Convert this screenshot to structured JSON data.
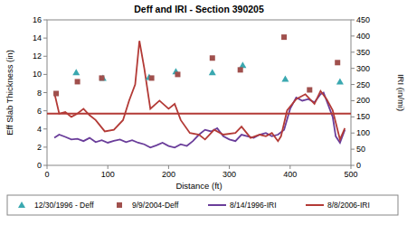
{
  "chart_data": {
    "type": "line",
    "title": "Deff and IRI - Section 390205",
    "x_label": "Distance (ft)",
    "y_label": "Eff Slab Thickness (in)",
    "y2_label": "IRI (in/mi)",
    "xlim": [
      0,
      500
    ],
    "xticks": [
      0,
      100,
      200,
      300,
      400,
      500
    ],
    "ylim": [
      0,
      16
    ],
    "yticks": [
      0,
      2,
      4,
      6,
      8,
      10,
      12,
      14,
      16
    ],
    "y2lim": [
      0,
      450
    ],
    "y2ticks": [
      0,
      50,
      100,
      150,
      200,
      250,
      300,
      350,
      400,
      450
    ],
    "grid": false,
    "legend": "bottom",
    "series": [
      {
        "name": "12/30/1996 - Deff",
        "type": "scatter",
        "marker": "triangle",
        "color": "#3aa8b0",
        "x": [
          48,
          92,
          168,
          212,
          272,
          322,
          392,
          482
        ],
        "values": [
          10.2,
          9.6,
          9.7,
          10.3,
          10.2,
          11.0,
          9.5,
          9.2
        ]
      },
      {
        "name": "9/9/2004-Deff",
        "type": "scatter",
        "marker": "square",
        "color": "#a0504d",
        "x": [
          15,
          50,
          90,
          172,
          215,
          272,
          318,
          390,
          432,
          478
        ],
        "values": [
          7.9,
          9.2,
          9.6,
          9.6,
          10.0,
          11.8,
          10.5,
          14.1,
          8.3,
          11.3
        ]
      },
      {
        "name": "8/14/1996-IRI",
        "type": "line",
        "line_style": "solid",
        "color": "#6a3d9a",
        "axis": "y2",
        "x": [
          12,
          20,
          30,
          40,
          50,
          60,
          70,
          80,
          90,
          100,
          110,
          120,
          130,
          140,
          150,
          160,
          170,
          180,
          190,
          200,
          210,
          220,
          230,
          240,
          250,
          260,
          270,
          280,
          290,
          300,
          310,
          320,
          330,
          340,
          350,
          360,
          370,
          380,
          390,
          400,
          410,
          420,
          430,
          440,
          450,
          455,
          460,
          470,
          475,
          482,
          490
        ],
        "values": [
          85,
          95,
          88,
          80,
          82,
          75,
          85,
          72,
          78,
          70,
          76,
          80,
          72,
          78,
          70,
          65,
          55,
          62,
          70,
          60,
          55,
          65,
          60,
          75,
          95,
          110,
          105,
          115,
          90,
          80,
          75,
          95,
          90,
          85,
          95,
          100,
          90,
          95,
          110,
          175,
          210,
          200,
          205,
          195,
          220,
          225,
          200,
          150,
          90,
          70,
          110
        ]
      },
      {
        "name": "8/8/2006-IRI",
        "type": "line",
        "line_style": "solid",
        "color": "#b33a36",
        "axis": "y2",
        "x": [
          12,
          20,
          30,
          40,
          50,
          60,
          70,
          80,
          95,
          110,
          125,
          135,
          145,
          152,
          160,
          170,
          185,
          200,
          210,
          220,
          235,
          250,
          260,
          275,
          290,
          310,
          320,
          335,
          350,
          360,
          370,
          380,
          385,
          395,
          410,
          425,
          440,
          450,
          460,
          470,
          482,
          490
        ],
        "values": [
          225,
          160,
          165,
          150,
          160,
          175,
          155,
          140,
          105,
          110,
          140,
          200,
          250,
          385,
          300,
          175,
          200,
          175,
          190,
          140,
          100,
          95,
          80,
          110,
          95,
          100,
          120,
          85,
          95,
          90,
          100,
          75,
          90,
          170,
          205,
          220,
          190,
          230,
          205,
          170,
          80,
          115
        ]
      },
      {
        "type": "line",
        "line_style": "solid",
        "color": "#b33a36",
        "axis": "y2",
        "x": [
          0,
          500
        ],
        "values": [
          160,
          160
        ]
      }
    ]
  }
}
